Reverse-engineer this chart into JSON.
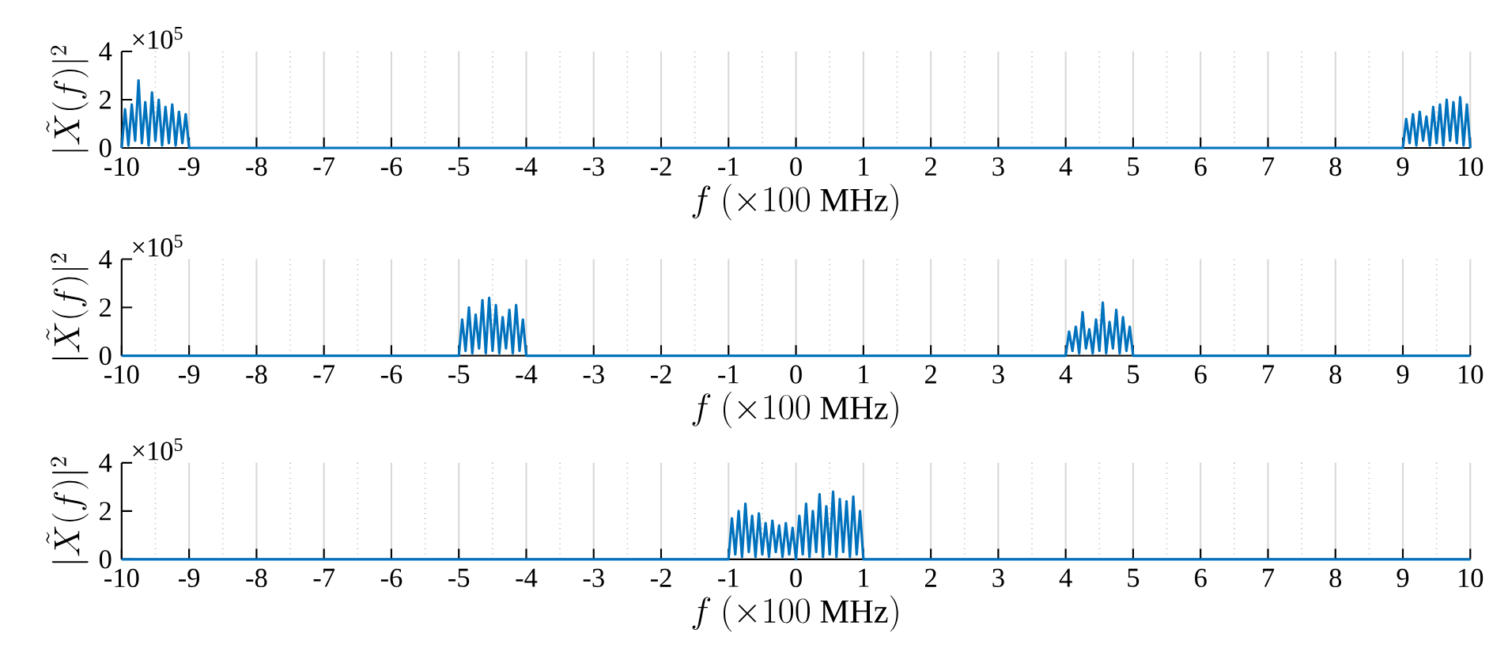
{
  "chart_data": [
    {
      "type": "line",
      "xlabel": "f\\ (\\times 100\\ \\mathrm{MHz})",
      "ylabel": "|\\tilde{X}(f)|^2",
      "annotations": [
        "×10$^{5}$"
      ],
      "color": "#0072bd",
      "grid": "x",
      "xlim": [
        -10,
        10
      ],
      "xticks": [
        -10,
        -9,
        -8,
        -7,
        -6,
        -5,
        -4,
        -3,
        -2,
        -1,
        0,
        1,
        2,
        3,
        4,
        5,
        6,
        7,
        8,
        9,
        10
      ],
      "ylim": [
        0,
        4
      ],
      "yticks": [
        0,
        2,
        4
      ],
      "x": [
        -10,
        -9.95,
        -9.9,
        -9.85,
        -9.8,
        -9.75,
        -9.7,
        -9.65,
        -9.6,
        -9.55,
        -9.5,
        -9.45,
        -9.4,
        -9.35,
        -9.3,
        -9.25,
        -9.2,
        -9.15,
        -9.1,
        -9.05,
        -9,
        9,
        9.05,
        9.1,
        9.15,
        9.2,
        9.25,
        9.3,
        9.35,
        9.4,
        9.45,
        9.5,
        9.55,
        9.6,
        9.65,
        9.7,
        9.75,
        9.8,
        9.85,
        9.9,
        9.95,
        10
      ],
      "values": [
        0,
        1.6,
        0.1,
        1.8,
        0.3,
        2.8,
        0.2,
        1.9,
        0.1,
        2.3,
        0.3,
        2.0,
        0.1,
        1.7,
        0.2,
        1.8,
        0.1,
        1.5,
        0.2,
        1.4,
        0,
        0,
        1.2,
        0.2,
        1.4,
        0.1,
        1.5,
        0.3,
        1.3,
        0.1,
        1.7,
        0.2,
        1.8,
        0.1,
        2.0,
        0.3,
        1.9,
        0.2,
        2.1,
        0.1,
        1.8,
        0
      ]
    },
    {
      "type": "line",
      "xlabel": "f\\ (\\times 100\\ \\mathrm{MHz})",
      "ylabel": "|\\tilde{X}(f)|^2",
      "annotations": [
        "×10$^{5}$"
      ],
      "color": "#0072bd",
      "grid": "x",
      "xlim": [
        -10,
        10
      ],
      "xticks": [
        -10,
        -9,
        -8,
        -7,
        -6,
        -5,
        -4,
        -3,
        -2,
        -1,
        0,
        1,
        2,
        3,
        4,
        5,
        6,
        7,
        8,
        9,
        10
      ],
      "ylim": [
        0,
        4
      ],
      "yticks": [
        0,
        2,
        4
      ],
      "x": [
        -10,
        -5,
        -4.95,
        -4.9,
        -4.85,
        -4.8,
        -4.75,
        -4.7,
        -4.65,
        -4.6,
        -4.55,
        -4.5,
        -4.45,
        -4.4,
        -4.35,
        -4.3,
        -4.25,
        -4.2,
        -4.15,
        -4.1,
        -4.05,
        -4,
        4,
        4.05,
        4.1,
        4.15,
        4.2,
        4.25,
        4.3,
        4.35,
        4.4,
        4.45,
        4.5,
        4.55,
        4.6,
        4.65,
        4.7,
        4.75,
        4.8,
        4.85,
        4.9,
        4.95,
        5,
        10
      ],
      "values": [
        0,
        0,
        1.5,
        0.2,
        2.0,
        0.1,
        1.7,
        0.3,
        2.3,
        0.1,
        2.4,
        0.2,
        2.1,
        0.1,
        1.6,
        0.3,
        1.9,
        0.1,
        2.1,
        0.2,
        1.5,
        0,
        0,
        1.0,
        0.2,
        1.2,
        0.1,
        1.8,
        0.3,
        1.1,
        0.1,
        1.5,
        0.2,
        2.2,
        0.1,
        1.4,
        0.3,
        1.9,
        0.1,
        1.6,
        0.2,
        1.2,
        0,
        0
      ]
    },
    {
      "type": "line",
      "xlabel": "f\\ (\\times 100\\ \\mathrm{MHz})",
      "ylabel": "|\\tilde{X}(f)|^2",
      "annotations": [
        "×10$^{5}$"
      ],
      "color": "#0072bd",
      "grid": "x",
      "xlim": [
        -10,
        10
      ],
      "xticks": [
        -10,
        -9,
        -8,
        -7,
        -6,
        -5,
        -4,
        -3,
        -2,
        -1,
        0,
        1,
        2,
        3,
        4,
        5,
        6,
        7,
        8,
        9,
        10
      ],
      "ylim": [
        0,
        4
      ],
      "yticks": [
        0,
        2,
        4
      ],
      "x": [
        -10,
        -1,
        -0.95,
        -0.9,
        -0.85,
        -0.8,
        -0.75,
        -0.7,
        -0.65,
        -0.6,
        -0.55,
        -0.5,
        -0.45,
        -0.4,
        -0.35,
        -0.3,
        -0.25,
        -0.2,
        -0.15,
        -0.1,
        -0.05,
        0,
        0.05,
        0.1,
        0.15,
        0.2,
        0.25,
        0.3,
        0.35,
        0.4,
        0.45,
        0.5,
        0.55,
        0.6,
        0.65,
        0.7,
        0.75,
        0.8,
        0.85,
        0.9,
        0.95,
        1,
        10
      ],
      "values": [
        0,
        0,
        1.7,
        0.2,
        2.0,
        0.1,
        2.3,
        0.3,
        1.8,
        0.1,
        1.9,
        0.2,
        1.5,
        0.1,
        1.6,
        0.3,
        1.4,
        0.1,
        1.5,
        0.2,
        1.3,
        0,
        1.8,
        0.2,
        2.3,
        0.1,
        2.0,
        0.3,
        2.7,
        0.1,
        2.2,
        0.2,
        2.8,
        0.1,
        2.5,
        0.3,
        2.4,
        0.1,
        2.6,
        0.2,
        2.0,
        0,
        0
      ]
    }
  ]
}
